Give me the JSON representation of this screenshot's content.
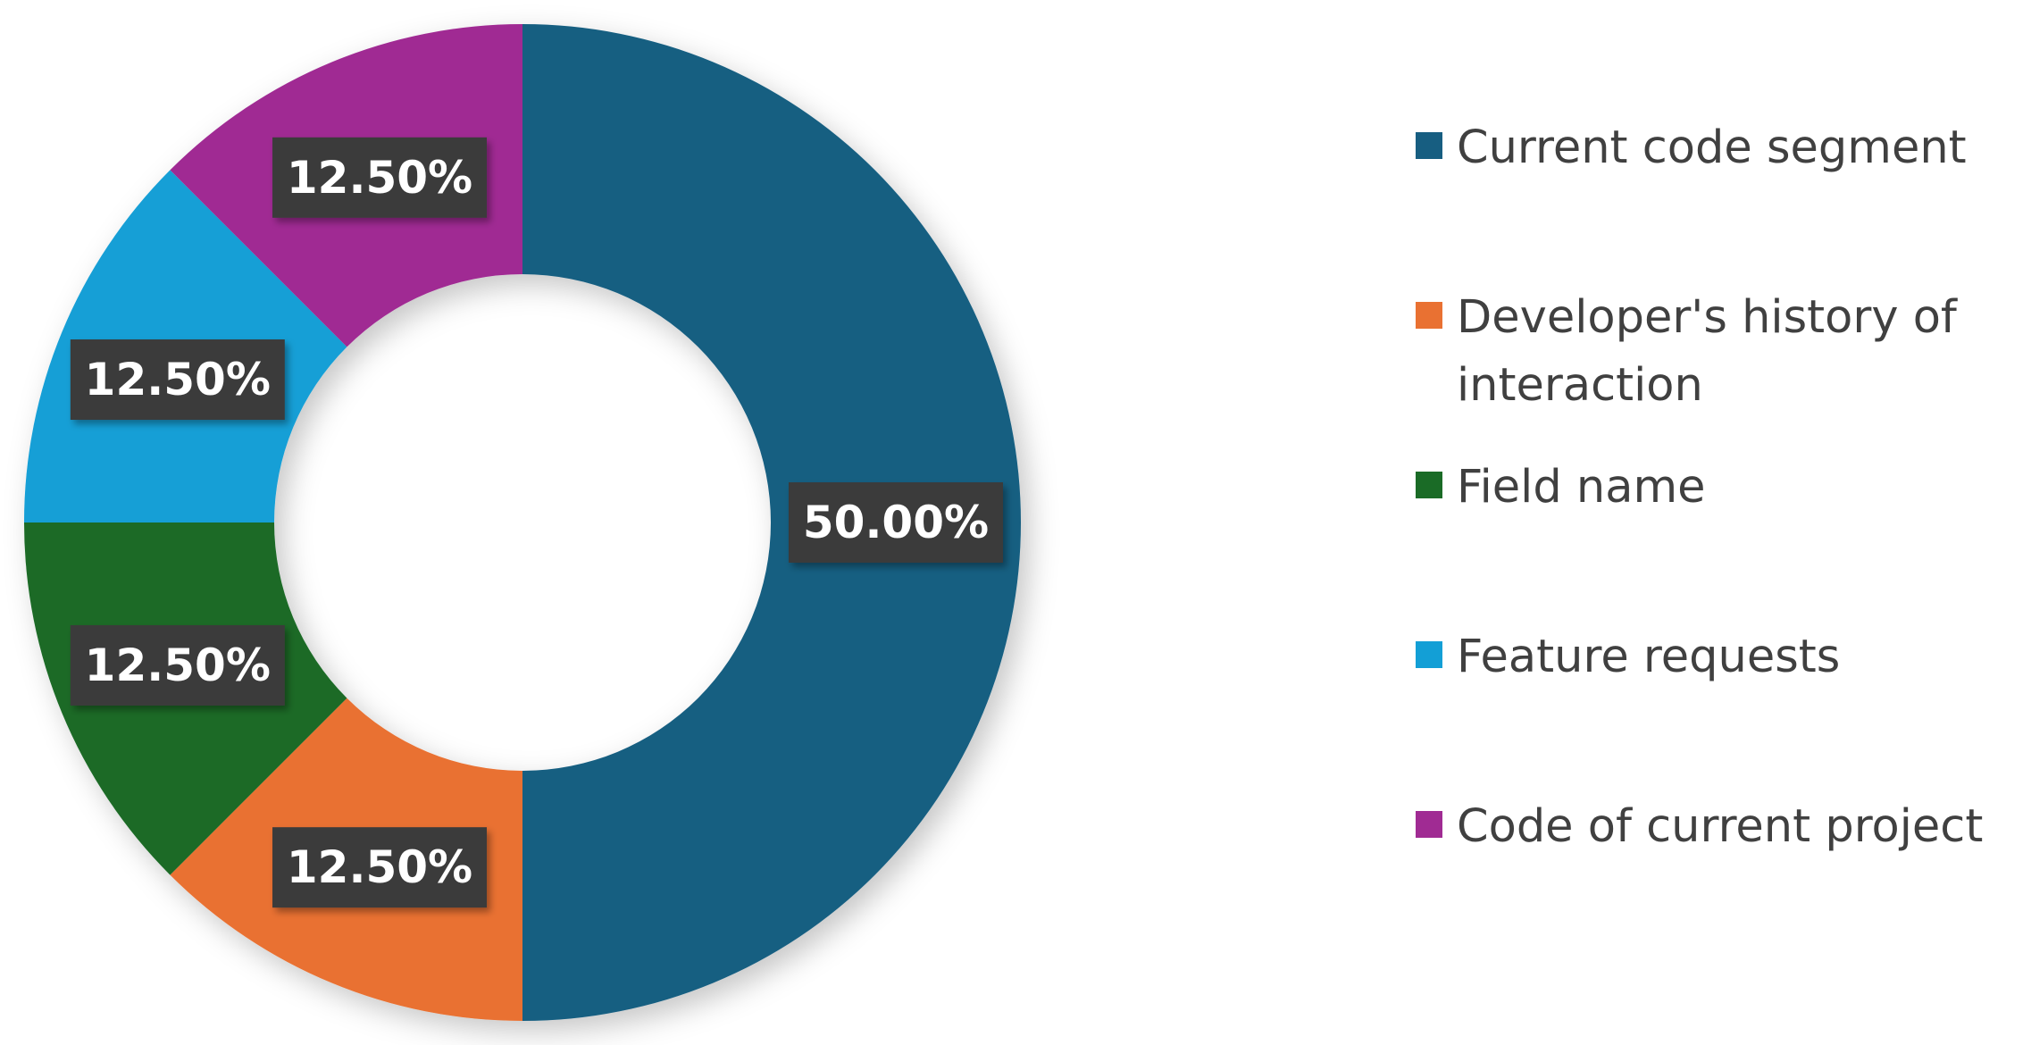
{
  "chart_data": {
    "type": "pie",
    "variant": "donut",
    "title": "",
    "categories": [
      "Current code segment",
      "Developer's history of interaction",
      "Field name",
      "Feature requests",
      "Code of current project"
    ],
    "values": [
      50.0,
      12.5,
      12.5,
      12.5,
      12.5
    ],
    "data_labels": [
      "50.00%",
      "12.50%",
      "12.50%",
      "12.50%",
      "12.50%"
    ],
    "colors": [
      "#175e81",
      "#e97132",
      "#1a6b26",
      "#139fd6",
      "#a02b93"
    ],
    "start_angle": "12 o'clock",
    "direction": "clockwise",
    "legend_position": "right"
  }
}
